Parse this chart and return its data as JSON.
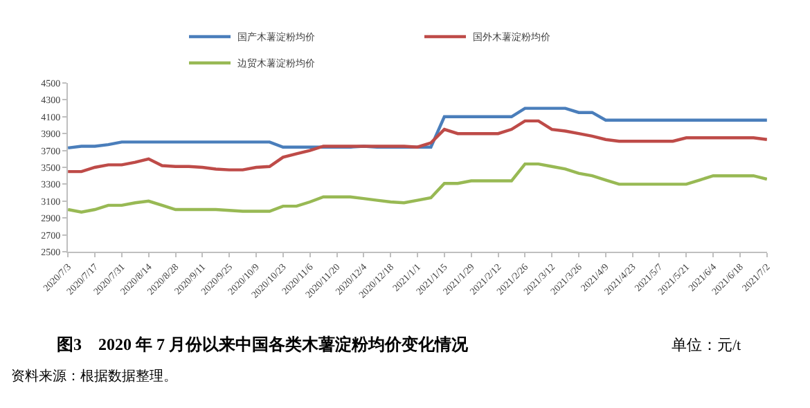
{
  "chart_data": {
    "type": "line",
    "title": "图3　2020 年 7 月份以来中国各类木薯淀粉均价变化情况",
    "annotations": [
      "单位：元/t",
      "资料来源：根据数据整理。"
    ],
    "categories": [
      "2020/7/3",
      null,
      "2020/7/17",
      null,
      "2020/7/31",
      null,
      "2020/8/14",
      null,
      "2020/8/28",
      null,
      "2020/9/11",
      null,
      "2020/9/25",
      null,
      "2020/10/9",
      null,
      "2020/10/23",
      null,
      "2020/11/6",
      null,
      "2020/11/20",
      null,
      "2020/12/4",
      null,
      "2020/12/18",
      null,
      "2021/1/1",
      null,
      "2021/1/15",
      null,
      "2021/1/29",
      null,
      "2021/2/12",
      null,
      "2021/2/26",
      null,
      "2021/3/12",
      null,
      "2021/3/26",
      null,
      "2021/4/9",
      null,
      "2021/4/23",
      null,
      "2021/5/7",
      null,
      "2021/5/21",
      null,
      "2021/6/4",
      null,
      "2021/6/18",
      null,
      "2021/7/2"
    ],
    "series": [
      {
        "name": "国产木薯淀粉均价",
        "color": "#4a7ebb",
        "values": [
          3730,
          3750,
          3750,
          3770,
          3800,
          3800,
          3800,
          3800,
          3800,
          3800,
          3800,
          3800,
          3800,
          3800,
          3800,
          3800,
          3740,
          3740,
          3740,
          3740,
          3740,
          3740,
          3750,
          3740,
          3740,
          3740,
          3740,
          3740,
          4100,
          4100,
          4100,
          4100,
          4100,
          4100,
          4200,
          4200,
          4200,
          4200,
          4150,
          4150,
          4060,
          4060,
          4060,
          4060,
          4060,
          4060,
          4060,
          4060,
          4060,
          4060,
          4060,
          4060,
          4060
        ]
      },
      {
        "name": "国外木薯淀粉均价",
        "color": "#be4b48",
        "values": [
          3450,
          3450,
          3500,
          3530,
          3530,
          3560,
          3600,
          3520,
          3510,
          3510,
          3500,
          3480,
          3470,
          3470,
          3500,
          3510,
          3620,
          3660,
          3700,
          3750,
          3750,
          3750,
          3750,
          3750,
          3750,
          3750,
          3740,
          3790,
          3950,
          3900,
          3900,
          3900,
          3900,
          3950,
          4050,
          4050,
          3950,
          3930,
          3900,
          3870,
          3830,
          3810,
          3810,
          3810,
          3810,
          3810,
          3850,
          3850,
          3850,
          3850,
          3850,
          3850,
          3830
        ]
      },
      {
        "name": "边贸木薯淀粉均价",
        "color": "#98b954",
        "values": [
          3000,
          2970,
          3000,
          3050,
          3050,
          3080,
          3100,
          3050,
          3000,
          3000,
          3000,
          3000,
          2990,
          2980,
          2980,
          2980,
          3040,
          3040,
          3090,
          3150,
          3150,
          3150,
          3130,
          3110,
          3090,
          3080,
          3110,
          3140,
          3310,
          3310,
          3340,
          3340,
          3340,
          3340,
          3540,
          3540,
          3510,
          3480,
          3430,
          3400,
          3350,
          3300,
          3300,
          3300,
          3300,
          3300,
          3300,
          3350,
          3400,
          3400,
          3400,
          3400,
          3360
        ]
      }
    ],
    "ylim": [
      2500,
      4500
    ],
    "yticks": [
      2500,
      2700,
      2900,
      3100,
      3300,
      3500,
      3700,
      3900,
      4100,
      4300,
      4500
    ],
    "legend": "top",
    "marker": "none",
    "line_style": "solid"
  }
}
